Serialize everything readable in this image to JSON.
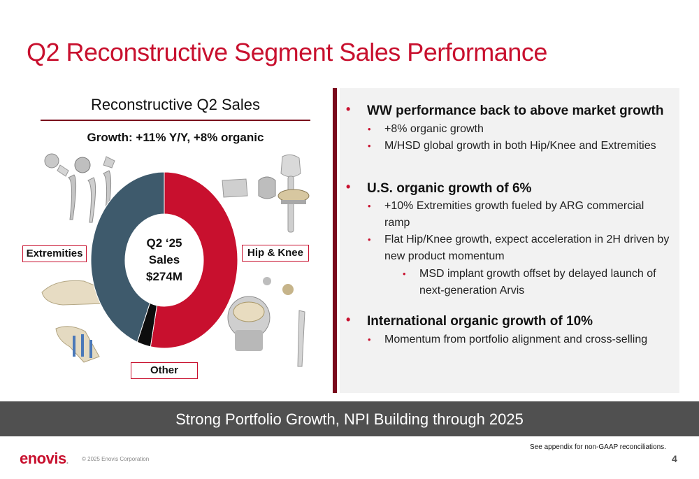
{
  "slide": {
    "title": "Q2 Reconstructive Segment Sales Performance",
    "page_number": "4"
  },
  "left_panel": {
    "heading": "Reconstructive Q2 Sales",
    "growth": "Growth: +11% Y/Y, +8% organic",
    "center_label": [
      "Q2 ‘25",
      "Sales",
      "$274M"
    ],
    "segment_labels": {
      "extremities": "Extremities",
      "hip_knee": "Hip & Knee",
      "other": "Other"
    },
    "colors": {
      "hip_knee": "#c8102e",
      "extremities": "#3e5a6c",
      "other": "#0d0d0d"
    }
  },
  "chart_data": {
    "type": "pie",
    "title": "Reconstructive Q2 Sales",
    "labels": [
      "Hip & Knee",
      "Other",
      "Extremities"
    ],
    "values": [
      53,
      3,
      44
    ],
    "colors": [
      "#c8102e",
      "#0d0d0d",
      "#3e5a6c"
    ],
    "donut": true,
    "center_text": "Q2 ‘25 Sales $274M"
  },
  "right_panel": {
    "sections": [
      {
        "heading": "WW performance back to above market growth",
        "items": [
          "+8% organic growth",
          "M/HSD global growth in both Hip/Knee and Extremities"
        ]
      },
      {
        "heading": "U.S. organic growth of 6%",
        "items": [
          "+10% Extremities growth fueled by ARG commercial ramp",
          "Flat Hip/Knee growth, expect acceleration in 2H driven by new product momentum"
        ],
        "subitems": [
          "MSD implant growth offset by delayed launch of next-generation Arvis"
        ]
      },
      {
        "heading": "International organic growth of 10%",
        "items": [
          "Momentum from portfolio alignment and cross-selling"
        ]
      }
    ]
  },
  "banner": {
    "text": "Strong Portfolio Growth, NPI Building through 2025"
  },
  "footer": {
    "logo": "enovis",
    "copyright": "© 2025 Enovis Corporation",
    "footnote": "See appendix for non-GAAP reconciliations."
  }
}
